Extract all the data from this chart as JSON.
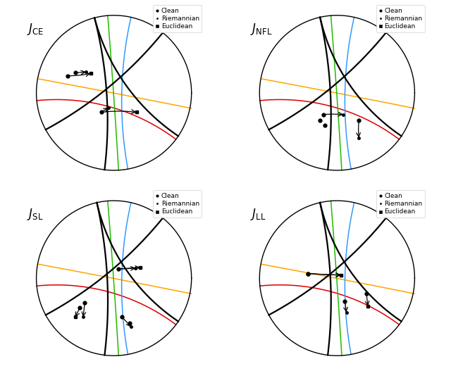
{
  "title_CE": "$J_{\\mathrm{CE}}$",
  "title_NFL": "$J_{\\mathrm{NFL}}$",
  "title_SL": "$J_{\\mathrm{SL}}$",
  "title_LL": "$J_{\\mathrm{LL}}$",
  "legend_labels": [
    "Clean",
    "Riemannian",
    "Euclidean"
  ],
  "orange_color": "#FFA500",
  "red_color": "#DD0000",
  "green_color": "#22BB00",
  "blue_color": "#3399FF",
  "orange_p1": [
    -0.97,
    0.18
  ],
  "orange_p2": [
    0.998,
    -0.2
  ],
  "red_p1": [
    -0.995,
    -0.1
  ],
  "red_p2": [
    0.8,
    -0.6
  ],
  "green_p1": [
    -0.08,
    0.997
  ],
  "green_p2": [
    0.06,
    -0.998
  ],
  "blue_p1": [
    0.22,
    0.975
  ],
  "blue_p2": [
    0.18,
    -0.984
  ],
  "CE": {
    "black_geodesics": [
      [
        [
          -0.25,
          0.968
        ],
        [
          -0.1,
          -0.995
        ]
      ],
      [
        [
          -0.25,
          0.968
        ],
        [
          0.82,
          -0.572
        ]
      ],
      [
        [
          -0.9,
          -0.436
        ],
        [
          0.6,
          0.8
        ]
      ]
    ],
    "loop_geodesics": [
      [
        [
          -0.25,
          0.968
        ],
        [
          0.82,
          -0.572
        ]
      ],
      [
        [
          -0.25,
          0.968
        ],
        [
          -0.1,
          -0.995
        ]
      ]
    ],
    "trajectories": [
      {
        "clean": [
          -0.16,
          -0.28
        ],
        "riem": [
          -0.16,
          -0.28
        ],
        "eucl": null,
        "type": "clean_only"
      },
      {
        "clean": [
          -0.16,
          -0.28
        ],
        "riem": [
          -0.07,
          -0.22
        ],
        "eucl": null
      },
      {
        "clean": [
          -0.16,
          -0.28
        ],
        "riem": null,
        "eucl": [
          0.3,
          -0.28
        ]
      },
      {
        "clean": [
          -0.52,
          0.22
        ],
        "riem": [
          -0.42,
          0.3
        ],
        "eucl": null
      },
      {
        "clean": [
          -0.52,
          0.22
        ],
        "riem": null,
        "eucl": [
          -0.28,
          0.27
        ]
      },
      {
        "clean": [
          -0.62,
          0.2
        ],
        "riem": null,
        "eucl": null
      }
    ]
  },
  "NFL": {
    "black_geodesics": [
      [
        [
          -0.2,
          0.98
        ],
        [
          -0.1,
          -0.995
        ]
      ],
      [
        [
          -0.2,
          0.98
        ],
        [
          0.82,
          -0.572
        ]
      ],
      [
        [
          -0.9,
          -0.436
        ],
        [
          0.6,
          0.8
        ]
      ]
    ],
    "trajectories": [
      {
        "clean": [
          -0.1,
          -0.28
        ],
        "riem": [
          0.08,
          -0.28
        ],
        "eucl": null
      },
      {
        "clean": [
          -0.1,
          -0.28
        ],
        "riem": null,
        "eucl": null
      },
      {
        "clean": [
          -0.22,
          -0.36
        ],
        "riem": null,
        "eucl": null
      },
      {
        "clean": [
          -0.16,
          -0.4
        ],
        "riem": null,
        "eucl": null
      },
      {
        "clean": [
          0.28,
          -0.28
        ],
        "riem": [
          0.28,
          -0.28
        ],
        "eucl": null
      },
      {
        "clean": [
          0.28,
          -0.46
        ],
        "riem": [
          0.28,
          -0.6
        ],
        "eucl": null
      }
    ]
  },
  "SL": {
    "black_geodesics": [
      [
        [
          -0.2,
          0.98
        ],
        [
          -0.1,
          -0.995
        ]
      ],
      [
        [
          -0.2,
          0.98
        ],
        [
          0.82,
          -0.572
        ]
      ],
      [
        [
          -0.9,
          -0.436
        ],
        [
          0.6,
          0.8
        ]
      ]
    ],
    "trajectories": [
      {
        "clean": [
          0.08,
          0.1
        ],
        "riem": [
          0.28,
          0.1
        ],
        "eucl": [
          0.34,
          0.12
        ]
      },
      {
        "clean": [
          -0.38,
          -0.3
        ],
        "riem": [
          -0.38,
          -0.48
        ],
        "eucl": null
      },
      {
        "clean": [
          -0.38,
          -0.3
        ],
        "riem": null,
        "eucl": [
          -0.48,
          -0.48
        ]
      },
      {
        "clean": [
          0.12,
          -0.52
        ],
        "riem": [
          0.22,
          -0.62
        ],
        "eucl": null
      },
      {
        "clean": [
          0.22,
          -0.58
        ],
        "riem": null,
        "eucl": null
      }
    ]
  },
  "LL": {
    "black_geodesics": [
      [
        [
          -0.2,
          0.98
        ],
        [
          -0.1,
          -0.995
        ]
      ],
      [
        [
          -0.2,
          0.98
        ],
        [
          0.82,
          -0.572
        ]
      ],
      [
        [
          -0.9,
          -0.436
        ],
        [
          0.6,
          0.8
        ]
      ]
    ],
    "trajectories": [
      {
        "clean": [
          -0.35,
          0.1
        ],
        "riem": [
          0.06,
          0.06
        ],
        "eucl": [
          0.06,
          0.06
        ]
      },
      {
        "clean": [
          0.08,
          -0.28
        ],
        "riem": [
          0.12,
          -0.42
        ],
        "eucl": null
      },
      {
        "clean": [
          0.35,
          -0.18
        ],
        "riem": null,
        "eucl": [
          0.38,
          -0.34
        ]
      }
    ]
  }
}
